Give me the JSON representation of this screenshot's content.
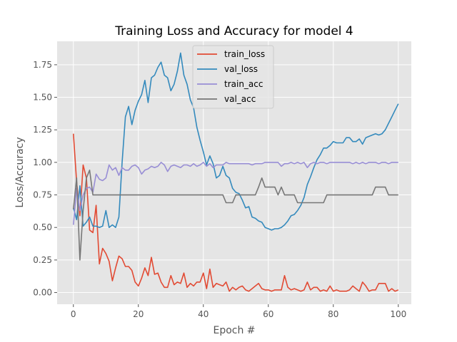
{
  "chart_data": {
    "type": "line",
    "title": "Training Loss and Accuracy for model 4",
    "xlabel": "Epoch #",
    "ylabel": "Loss/Accuracy",
    "xlim": [
      -5,
      104
    ],
    "ylim": [
      -0.09,
      1.93
    ],
    "xticks": [
      0,
      20,
      40,
      60,
      80,
      100
    ],
    "yticks": [
      0.0,
      0.25,
      0.5,
      0.75,
      1.0,
      1.25,
      1.5,
      1.75
    ],
    "ytick_labels": [
      "0.00",
      "0.25",
      "0.50",
      "0.75",
      "1.00",
      "1.25",
      "1.50",
      "1.75"
    ],
    "grid": true,
    "legend_position": "top-center",
    "series": [
      {
        "name": "train_loss",
        "color": "#e24a33",
        "values": [
          1.22,
          0.85,
          0.59,
          0.98,
          0.88,
          0.48,
          0.46,
          0.67,
          0.22,
          0.34,
          0.3,
          0.24,
          0.09,
          0.19,
          0.28,
          0.26,
          0.2,
          0.2,
          0.17,
          0.08,
          0.05,
          0.11,
          0.19,
          0.13,
          0.27,
          0.14,
          0.15,
          0.08,
          0.04,
          0.04,
          0.13,
          0.06,
          0.08,
          0.07,
          0.15,
          0.04,
          0.07,
          0.05,
          0.08,
          0.08,
          0.15,
          0.03,
          0.18,
          0.04,
          0.07,
          0.06,
          0.05,
          0.08,
          0.01,
          0.04,
          0.02,
          0.04,
          0.05,
          0.02,
          0.01,
          0.03,
          0.05,
          0.07,
          0.03,
          0.02,
          0.02,
          0.01,
          0.02,
          0.02,
          0.02,
          0.13,
          0.04,
          0.02,
          0.03,
          0.02,
          0.01,
          0.02,
          0.08,
          0.02,
          0.04,
          0.04,
          0.01,
          0.02,
          0.01,
          0.05,
          0.01,
          0.02,
          0.01,
          0.01,
          0.01,
          0.02,
          0.05,
          0.03,
          0.01,
          0.08,
          0.05,
          0.01,
          0.02,
          0.02,
          0.07,
          0.07,
          0.07,
          0.01,
          0.03,
          0.01,
          0.02
        ]
      },
      {
        "name": "val_loss",
        "color": "#348abd",
        "values": [
          0.65,
          0.56,
          0.82,
          0.51,
          0.54,
          0.58,
          0.51,
          0.51,
          0.5,
          0.51,
          0.63,
          0.5,
          0.52,
          0.5,
          0.58,
          1.0,
          1.35,
          1.43,
          1.29,
          1.4,
          1.47,
          1.52,
          1.63,
          1.46,
          1.65,
          1.67,
          1.73,
          1.77,
          1.67,
          1.65,
          1.55,
          1.6,
          1.7,
          1.84,
          1.67,
          1.6,
          1.48,
          1.42,
          1.27,
          1.17,
          1.08,
          0.98,
          1.05,
          0.99,
          0.88,
          0.9,
          0.97,
          0.9,
          0.88,
          0.8,
          0.77,
          0.76,
          0.71,
          0.65,
          0.66,
          0.58,
          0.57,
          0.55,
          0.54,
          0.5,
          0.49,
          0.48,
          0.49,
          0.49,
          0.5,
          0.52,
          0.55,
          0.59,
          0.6,
          0.63,
          0.67,
          0.73,
          0.83,
          0.89,
          0.96,
          1.02,
          1.06,
          1.11,
          1.11,
          1.13,
          1.16,
          1.15,
          1.15,
          1.15,
          1.19,
          1.19,
          1.16,
          1.16,
          1.18,
          1.14,
          1.19,
          1.2,
          1.21,
          1.22,
          1.21,
          1.22,
          1.25,
          1.3,
          1.35,
          1.4,
          1.45
        ]
      },
      {
        "name": "train_acc",
        "color": "#988ed5",
        "values": [
          0.52,
          0.8,
          0.63,
          0.75,
          0.8,
          0.81,
          0.77,
          0.91,
          0.87,
          0.86,
          0.88,
          0.98,
          0.94,
          0.96,
          0.9,
          0.96,
          0.94,
          0.94,
          0.97,
          0.98,
          0.96,
          0.91,
          0.94,
          0.95,
          0.97,
          0.96,
          0.97,
          1.0,
          0.98,
          0.93,
          0.97,
          0.98,
          0.97,
          0.96,
          0.98,
          0.98,
          0.97,
          0.99,
          0.97,
          0.98,
          1.0,
          0.97,
          0.99,
          0.96,
          0.98,
          0.98,
          0.98,
          1.0,
          0.99,
          0.99,
          0.99,
          0.99,
          0.99,
          0.99,
          0.99,
          0.98,
          0.99,
          0.99,
          0.99,
          1.0,
          1.0,
          1.0,
          1.0,
          1.0,
          0.97,
          0.99,
          0.99,
          1.0,
          0.99,
          1.0,
          0.99,
          1.0,
          0.96,
          0.99,
          1.0,
          0.99,
          1.0,
          1.0,
          0.99,
          1.0,
          1.0,
          1.0,
          1.0,
          1.0,
          1.0,
          1.0,
          0.99,
          1.0,
          0.99,
          1.0,
          0.99,
          1.0,
          1.0,
          1.0,
          0.99,
          1.0,
          1.0,
          0.99,
          1.0,
          1.0,
          1.0
        ]
      },
      {
        "name": "val_acc",
        "color": "#777777",
        "values": [
          0.64,
          0.88,
          0.25,
          0.63,
          0.88,
          0.94,
          0.75,
          0.75,
          0.75,
          0.75,
          0.75,
          0.75,
          0.75,
          0.75,
          0.75,
          0.75,
          0.75,
          0.75,
          0.75,
          0.75,
          0.75,
          0.75,
          0.75,
          0.75,
          0.75,
          0.75,
          0.75,
          0.75,
          0.75,
          0.75,
          0.75,
          0.75,
          0.75,
          0.75,
          0.75,
          0.75,
          0.75,
          0.75,
          0.75,
          0.75,
          0.75,
          0.75,
          0.75,
          0.75,
          0.75,
          0.75,
          0.75,
          0.69,
          0.69,
          0.69,
          0.75,
          0.75,
          0.75,
          0.75,
          0.75,
          0.75,
          0.75,
          0.81,
          0.88,
          0.81,
          0.81,
          0.81,
          0.81,
          0.75,
          0.81,
          0.75,
          0.75,
          0.75,
          0.75,
          0.69,
          0.69,
          0.69,
          0.69,
          0.69,
          0.69,
          0.69,
          0.69,
          0.69,
          0.75,
          0.75,
          0.75,
          0.75,
          0.75,
          0.75,
          0.75,
          0.75,
          0.75,
          0.75,
          0.75,
          0.75,
          0.75,
          0.75,
          0.75,
          0.81,
          0.81,
          0.81,
          0.81,
          0.75,
          0.75,
          0.75,
          0.75
        ]
      }
    ]
  }
}
